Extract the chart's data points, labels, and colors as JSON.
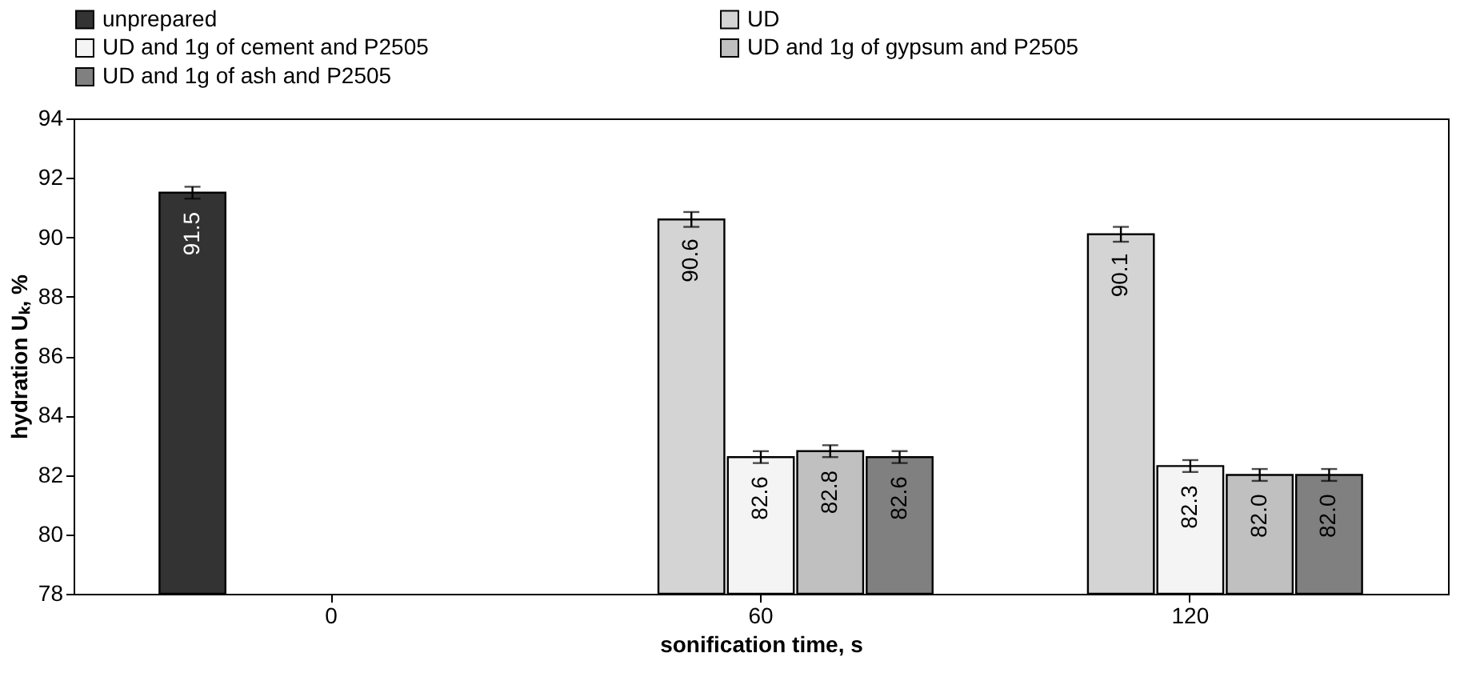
{
  "chart_data": {
    "type": "bar",
    "xlabel": "sonification time, s",
    "ylabel": "hydration Uₖ, %",
    "categories": [
      "0",
      "60",
      "120"
    ],
    "series": [
      {
        "name": "unprepared",
        "color": "#333333",
        "values": [
          91.5,
          null,
          null
        ],
        "errors": [
          0.2,
          null,
          null
        ],
        "value_labels": [
          "91.5",
          null,
          null
        ]
      },
      {
        "name": "UD",
        "color": "#d4d4d4",
        "values": [
          null,
          90.6,
          90.1
        ],
        "errors": [
          null,
          0.25,
          0.25
        ],
        "value_labels": [
          null,
          "90.6",
          "90.1"
        ]
      },
      {
        "name": "UD and 1g of cement and P2505",
        "color": "#f4f4f4",
        "values": [
          null,
          82.6,
          82.3
        ],
        "errors": [
          null,
          0.2,
          0.2
        ],
        "value_labels": [
          null,
          "82.6",
          "82.3"
        ]
      },
      {
        "name": "UD and 1g of gypsum and P2505",
        "color": "#c0c0c0",
        "values": [
          null,
          82.8,
          82.0
        ],
        "errors": [
          null,
          0.2,
          0.2
        ],
        "value_labels": [
          null,
          "82.8",
          "82.0"
        ]
      },
      {
        "name": "UD and 1g of ash and P2505",
        "color": "#808080",
        "values": [
          null,
          82.6,
          82.0
        ],
        "errors": [
          null,
          0.2,
          0.2
        ],
        "value_labels": [
          null,
          "82.6",
          "82.0"
        ]
      }
    ],
    "ylim": [
      78,
      94
    ],
    "yticks": [
      78,
      80,
      82,
      84,
      86,
      88,
      90,
      92,
      94
    ],
    "grid": false,
    "legend": "top"
  }
}
